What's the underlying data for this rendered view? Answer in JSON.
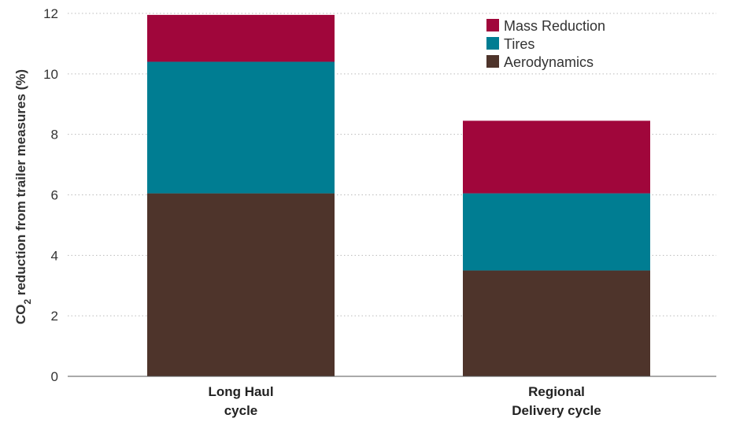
{
  "chart_data": {
    "type": "bar",
    "stacked": true,
    "categories": [
      [
        "Long Haul",
        "cycle"
      ],
      [
        "Regional",
        "Delivery cycle"
      ]
    ],
    "series": [
      {
        "name": "Aerodynamics",
        "values": [
          6.05,
          3.5
        ],
        "color": "#4e342b"
      },
      {
        "name": "Tires",
        "values": [
          4.35,
          2.55
        ],
        "color": "#007d92"
      },
      {
        "name": "Mass Reduction",
        "values": [
          1.55,
          2.4
        ],
        "color": "#a0063b"
      }
    ],
    "ylabel": {
      "before": "CO",
      "sub": "2",
      "after": " reduction from trailer measures (%)"
    },
    "ylim": [
      0,
      12
    ],
    "yticks": [
      0,
      2,
      4,
      6,
      8,
      10,
      12
    ],
    "grid": true,
    "legend": {
      "placement": "top-right",
      "order": [
        "Mass Reduction",
        "Tires",
        "Aerodynamics"
      ]
    }
  }
}
